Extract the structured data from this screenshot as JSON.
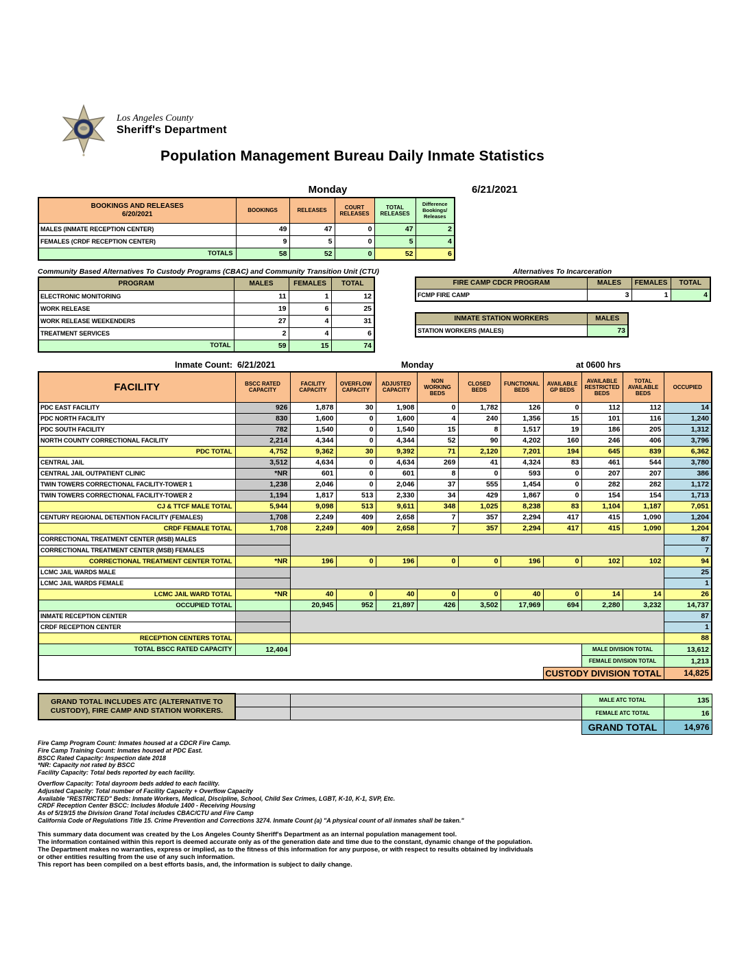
{
  "page": {
    "title": "Population Management Bureau Daily Inmate Statistics",
    "day": "Monday",
    "date": "6/21/2021",
    "logo": {
      "line1": "Los Angeles County",
      "line2": "Sheriff's Department"
    },
    "colors": {
      "header_orange": "#FAC090",
      "total_yellow": "#FFFF99",
      "light_green": "#CCFFCC",
      "occupied_blue": "#BCDDE9",
      "bscc_gray": "#C9C9C9",
      "merged_gray": "#D6D6D6",
      "tan_header": "#C4BD97",
      "grand_total_blue": "#8CCADC"
    }
  },
  "bookings": {
    "title_line1": "BOOKINGS AND RELEASES",
    "title_line2": "6/20/2021",
    "columns": [
      "BOOKINGS",
      "RELEASES",
      "COURT RELEASES",
      "TOTAL RELEASES",
      "Difference Bookings/ Releases"
    ],
    "rows": [
      {
        "label": "MALES (INMATE RECEPTION CENTER)",
        "values": [
          "49",
          "47",
          "0",
          "47",
          "2"
        ]
      },
      {
        "label": "FEMALES (CRDF RECEPTION CENTER)",
        "values": [
          "9",
          "5",
          "0",
          "5",
          "4"
        ]
      }
    ],
    "totals": {
      "label": "TOTALS",
      "values": [
        "58",
        "52",
        "0",
        "52",
        "6"
      ]
    }
  },
  "cbac": {
    "title": "Community Based Alternatives To Custody Programs (CBAC) and Community Transition Unit (CTU)",
    "columns": [
      "PROGRAM",
      "MALES",
      "FEMALES",
      "TOTAL"
    ],
    "rows": [
      {
        "label": "ELECTRONIC MONITORING",
        "values": [
          "11",
          "1",
          "12"
        ]
      },
      {
        "label": "WORK RELEASE",
        "values": [
          "19",
          "6",
          "25"
        ]
      },
      {
        "label": "WORK RELEASE WEEKENDERS",
        "values": [
          "27",
          "4",
          "31"
        ]
      },
      {
        "label": "TREATMENT SERVICES",
        "values": [
          "2",
          "4",
          "6"
        ]
      }
    ],
    "totals": {
      "label": "TOTAL",
      "values": [
        "59",
        "15",
        "74"
      ]
    }
  },
  "ati": {
    "title": "Alternatives To Incarceration",
    "fire_camp": {
      "header": "FIRE CAMP CDCR PROGRAM",
      "columns": [
        "MALES",
        "FEMALES",
        "TOTAL"
      ],
      "row": {
        "label": "FCMP FIRE CAMP",
        "values": [
          "3",
          "1",
          "4"
        ]
      }
    },
    "station_workers": {
      "header": "INMATE STATION WORKERS",
      "column": "MALES",
      "row": {
        "label": "STATION WORKERS (MALES)",
        "value": "73"
      }
    }
  },
  "inmate_count": {
    "label": "Inmate Count:",
    "date": "6/21/2021",
    "day": "Monday",
    "time": "at 0600 hrs"
  },
  "facility_table": {
    "columns": [
      "FACILITY",
      "BSCC RATED CAPACITY",
      "FACILITY CAPACITY",
      "OVERFLOW CAPACITY",
      "ADJUSTED CAPACITY",
      "NON WORKING BEDS",
      "CLOSED BEDS",
      "FUNCTIONAL BEDS",
      "AVAILABLE GP BEDS",
      "AVAILABLE RESTRICTED BEDS",
      "TOTAL AVAILABLE BEDS",
      "OCCUPIED"
    ],
    "rows": [
      {
        "label": "PDC EAST FACILITY",
        "type": "data",
        "values": [
          "926",
          "1,878",
          "30",
          "1,908",
          "0",
          "1,782",
          "126",
          "0",
          "112",
          "112",
          "14"
        ]
      },
      {
        "label": "PDC NORTH FACILITY",
        "type": "data",
        "values": [
          "830",
          "1,600",
          "0",
          "1,600",
          "4",
          "240",
          "1,356",
          "15",
          "101",
          "116",
          "1,240"
        ]
      },
      {
        "label": "PDC SOUTH FACILITY",
        "type": "data",
        "values": [
          "782",
          "1,540",
          "0",
          "1,540",
          "15",
          "8",
          "1,517",
          "19",
          "186",
          "205",
          "1,312"
        ]
      },
      {
        "label": "NORTH COUNTY CORRECTIONAL FACILITY",
        "type": "data",
        "values": [
          "2,214",
          "4,344",
          "0",
          "4,344",
          "52",
          "90",
          "4,202",
          "160",
          "246",
          "406",
          "3,796"
        ]
      },
      {
        "label": "PDC TOTAL",
        "type": "total",
        "values": [
          "4,752",
          "9,362",
          "30",
          "9,392",
          "71",
          "2,120",
          "7,201",
          "194",
          "645",
          "839",
          "6,362"
        ]
      },
      {
        "label": "CENTRAL JAIL",
        "type": "data",
        "values": [
          "3,512",
          "4,634",
          "0",
          "4,634",
          "269",
          "41",
          "4,324",
          "83",
          "461",
          "544",
          "3,780"
        ]
      },
      {
        "label": "CENTRAL JAIL OUTPATIENT CLINIC",
        "type": "data",
        "values": [
          "*NR",
          "601",
          "0",
          "601",
          "8",
          "0",
          "593",
          "0",
          "207",
          "207",
          "386"
        ]
      },
      {
        "label": "TWIN TOWERS CORRECTIONAL FACILITY-TOWER 1",
        "type": "data",
        "values": [
          "1,238",
          "2,046",
          "0",
          "2,046",
          "37",
          "555",
          "1,454",
          "0",
          "282",
          "282",
          "1,172"
        ]
      },
      {
        "label": "TWIN TOWERS CORRECTIONAL FACILITY-TOWER 2",
        "type": "data",
        "values": [
          "1,194",
          "1,817",
          "513",
          "2,330",
          "34",
          "429",
          "1,867",
          "0",
          "154",
          "154",
          "1,713"
        ]
      },
      {
        "label": "CJ & TTCF MALE TOTAL",
        "type": "total",
        "values": [
          "5,944",
          "9,098",
          "513",
          "9,611",
          "348",
          "1,025",
          "8,238",
          "83",
          "1,104",
          "1,187",
          "7,051"
        ]
      },
      {
        "label": "CENTURY REGIONAL DETENTION FACILITY (FEMALES)",
        "type": "data",
        "values": [
          "1,708",
          "2,249",
          "409",
          "2,658",
          "7",
          "357",
          "2,294",
          "417",
          "415",
          "1,090",
          "1,204"
        ]
      },
      {
        "label": "CRDF FEMALE TOTAL",
        "type": "total",
        "values": [
          "1,708",
          "2,249",
          "409",
          "2,658",
          "7",
          "357",
          "2,294",
          "417",
          "415",
          "1,090",
          "1,204"
        ]
      },
      {
        "label": "CORRECTIONAL TREATMENT CENTER (MSB) MALES",
        "type": "gray-first",
        "occupied": "87"
      },
      {
        "label": "CORRECTIONAL TREATMENT CENTER (MSB) FEMALES",
        "type": "gray-second",
        "occupied": "7"
      },
      {
        "label": "CORRECTIONAL TREATMENT CENTER TOTAL",
        "type": "total",
        "values": [
          "*NR",
          "196",
          "0",
          "196",
          "0",
          "0",
          "196",
          "0",
          "102",
          "102",
          "94"
        ]
      },
      {
        "label": "LCMC JAIL WARDS MALE",
        "type": "gray-first",
        "occupied": "25"
      },
      {
        "label": "LCMC JAIL WARDS FEMALE",
        "type": "gray-second",
        "occupied": "1"
      },
      {
        "label": "LCMC JAIL WARD TOTAL",
        "type": "total",
        "values": [
          "*NR",
          "40",
          "0",
          "40",
          "0",
          "0",
          "40",
          "0",
          "14",
          "14",
          "26"
        ]
      },
      {
        "label": "OCCUPIED TOTAL",
        "type": "green-total",
        "values": [
          "",
          "20,945",
          "952",
          "21,897",
          "426",
          "3,502",
          "17,969",
          "694",
          "2,280",
          "3,232",
          "14,737"
        ]
      },
      {
        "label": "INMATE RECEPTION CENTER",
        "type": "gray-first",
        "occupied": "87"
      },
      {
        "label": "CRDF RECEPTION CENTER",
        "type": "gray-second",
        "occupied": "1"
      },
      {
        "label": "RECEPTION CENTERS TOTAL",
        "type": "yellow-span",
        "occupied": "88"
      }
    ],
    "bottom": {
      "bscc_total_label": "TOTAL BSCC RATED CAPACITY",
      "bscc_total_value": "12,404",
      "male_division_label": "MALE DIVISION TOTAL",
      "male_division_value": "13,612",
      "female_division_label": "FEMALE DIVISION TOTAL",
      "female_division_value": "1,213",
      "custody_label": "CUSTODY DIVISION TOTAL",
      "custody_value": "14,825"
    }
  },
  "grand": {
    "note": "GRAND TOTAL INCLUDES ATC (ALTERNATIVE TO CUSTODY), FIRE CAMP AND STATION WORKERS.",
    "male_atc_label": "MALE ATC TOTAL",
    "male_atc_value": "135",
    "female_atc_label": "FEMALE ATC TOTAL",
    "female_atc_value": "16",
    "grand_label": "GRAND TOTAL",
    "grand_value": "14,976"
  },
  "footnotes": {
    "group1": [
      "Fire Camp Program Count: Inmates housed at a CDCR Fire Camp.",
      "Fire Camp Training Count: Inmates housed at PDC East.",
      "BSCC Rated Capacity: Inspection date 2018",
      "*NR: Capacity not rated by BSCC",
      "Facility Capacity: Total beds reported by each facility."
    ],
    "group2": [
      "Overflow Capacity: Total dayroom beds added to each facility.",
      "Adjusted Capacity: Total number of Facility Capacity + Overflow Capacity",
      "Available \"RESTRICTED\" Beds: Inmate Workers, Medical, Discipline, School, Child Sex Crimes,  LGBT, K-10, K-1, SVP, Etc.",
      "CRDF Reception Center BSCC: Includes Module 1400 - Receiving Housing",
      "As of 5/19/15 the Division Grand Total includes CBAC/CTU and Fire Camp",
      "California Code of Regulations Title 15. Crime Prevention and Corrections 3274. Inmate Count (a) \"A physical count of all inmates shall be taken.\""
    ]
  },
  "disclaimer": [
    "This summary data document was created by the Los Angeles County Sheriff's Department as an internal population management tool.",
    "The information contained within this report is deemed accurate only as of the generation date and time due to the constant, dynamic change of the population.",
    "The Department makes no warranties, express or implied, as to the fitness of this information for any purpose, or with respect to results obtained by individuals",
    "or other entities resulting from the use of any such information.",
    "This report has been compiled on a best efforts basis, and, the information is subject to daily change."
  ]
}
